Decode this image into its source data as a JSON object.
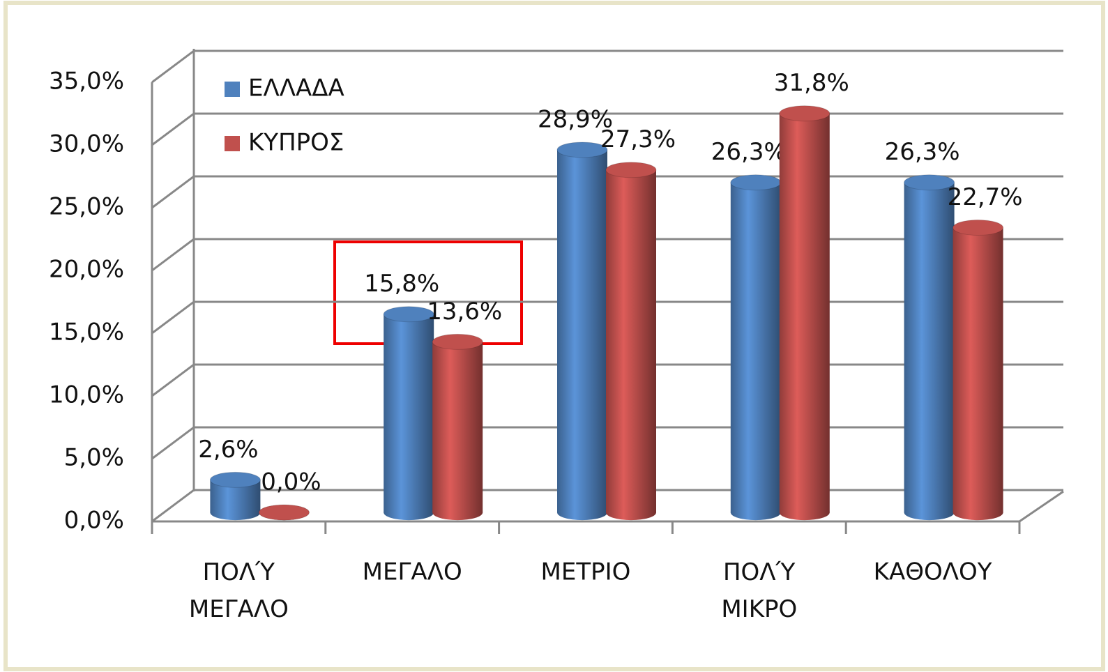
{
  "chart_data": {
    "type": "bar3d",
    "categories": [
      "ΠΟΛΎ ΜΕΓΑΛΟ",
      "ΜΕΓΑΛΟ",
      "ΜΕΤΡΙΟ",
      "ΠΟΛΎ ΜΙΚΡΟ",
      "ΚΑΘΟΛΟΥ"
    ],
    "series": [
      {
        "name": "ΕΛΛΑΔΑ",
        "color": "#4f81bd",
        "values": [
          2.6,
          15.8,
          28.9,
          26.3,
          26.3
        ],
        "value_labels": [
          "2,6%",
          "15,8%",
          "28,9%",
          "26,3%",
          "26,3%"
        ]
      },
      {
        "name": "ΚΥΠΡΟΣ",
        "color": "#c0504d",
        "values": [
          0,
          13.6,
          27.3,
          31.8,
          22.7
        ],
        "value_labels": [
          "0,0%",
          "13,6%",
          "27,3%",
          "31,8%",
          "22,7%"
        ]
      }
    ],
    "ylim": [
      0,
      35
    ],
    "yticks": [
      {
        "value": 0,
        "label": "0,0%"
      },
      {
        "value": 5,
        "label": "5,0%"
      },
      {
        "value": 10,
        "label": "10,0%"
      },
      {
        "value": 15,
        "label": "15,0%"
      },
      {
        "value": 20,
        "label": "20,0%"
      },
      {
        "value": 25,
        "label": "25,0%"
      },
      {
        "value": 30,
        "label": "30,0%"
      },
      {
        "value": 35,
        "label": "35,0%"
      }
    ],
    "grid": true,
    "legend": "top-left"
  }
}
